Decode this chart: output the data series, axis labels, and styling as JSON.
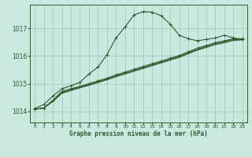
{
  "title": "Graphe pression niveau de la mer (hPa)",
  "bg_color": "#c8e8e0",
  "grid_color": "#9dcfba",
  "line_color": "#2d5a2d",
  "marker_color": "#2d5a2d",
  "xlim": [
    -0.5,
    23.5
  ],
  "ylim": [
    1013.6,
    1017.85
  ],
  "yticks": [
    1014,
    1015,
    1016,
    1017
  ],
  "xticks": [
    0,
    1,
    2,
    3,
    4,
    5,
    6,
    7,
    8,
    9,
    10,
    11,
    12,
    13,
    14,
    15,
    16,
    17,
    18,
    19,
    20,
    21,
    22,
    23
  ],
  "series1_x": [
    0,
    1,
    2,
    3,
    4,
    5,
    6,
    7,
    8,
    9,
    10,
    11,
    12,
    13,
    14,
    15,
    16,
    17,
    18,
    19,
    20,
    21,
    22,
    23
  ],
  "series1_y": [
    1014.1,
    1014.25,
    1014.55,
    1014.82,
    1014.92,
    1015.05,
    1015.35,
    1015.6,
    1016.05,
    1016.65,
    1017.05,
    1017.48,
    1017.6,
    1017.58,
    1017.45,
    1017.15,
    1016.75,
    1016.62,
    1016.55,
    1016.6,
    1016.65,
    1016.75,
    1016.65,
    1016.6
  ],
  "series2_x": [
    0,
    1,
    2,
    3,
    4,
    5,
    6,
    7,
    8,
    9,
    10,
    11,
    12,
    13,
    14,
    15,
    16,
    17,
    18,
    19,
    20,
    21,
    22,
    23
  ],
  "series2_y": [
    1014.08,
    1014.12,
    1014.4,
    1014.72,
    1014.82,
    1014.9,
    1015.0,
    1015.1,
    1015.2,
    1015.32,
    1015.42,
    1015.52,
    1015.62,
    1015.72,
    1015.82,
    1015.92,
    1016.02,
    1016.15,
    1016.28,
    1016.38,
    1016.48,
    1016.55,
    1016.62,
    1016.62
  ],
  "series3_x": [
    0,
    1,
    2,
    3,
    4,
    5,
    6,
    7,
    8,
    9,
    10,
    11,
    12,
    13,
    14,
    15,
    16,
    17,
    18,
    19,
    20,
    21,
    22,
    23
  ],
  "series3_y": [
    1014.08,
    1014.12,
    1014.38,
    1014.68,
    1014.78,
    1014.88,
    1014.97,
    1015.07,
    1015.17,
    1015.28,
    1015.38,
    1015.48,
    1015.58,
    1015.68,
    1015.78,
    1015.88,
    1015.98,
    1016.11,
    1016.24,
    1016.34,
    1016.44,
    1016.51,
    1016.59,
    1016.6
  ],
  "series4_x": [
    0,
    1,
    2,
    3,
    4,
    5,
    6,
    7,
    8,
    9,
    10,
    11,
    12,
    13,
    14,
    15,
    16,
    17,
    18,
    19,
    20,
    21,
    22,
    23
  ],
  "series4_y": [
    1014.08,
    1014.12,
    1014.36,
    1014.65,
    1014.75,
    1014.85,
    1014.94,
    1015.04,
    1015.14,
    1015.25,
    1015.35,
    1015.45,
    1015.55,
    1015.65,
    1015.75,
    1015.85,
    1015.95,
    1016.08,
    1016.21,
    1016.31,
    1016.41,
    1016.48,
    1016.56,
    1016.58
  ]
}
